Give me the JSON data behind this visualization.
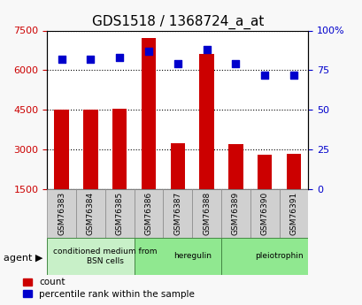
{
  "title": "GDS1518 / 1368724_a_at",
  "samples": [
    "GSM76383",
    "GSM76384",
    "GSM76385",
    "GSM76386",
    "GSM76387",
    "GSM76388",
    "GSM76389",
    "GSM76390",
    "GSM76391"
  ],
  "counts": [
    4500,
    4500,
    4550,
    7200,
    3250,
    6600,
    3200,
    2800,
    2850
  ],
  "percentiles": [
    82,
    82,
    83,
    87,
    79,
    88,
    79,
    72,
    72
  ],
  "groups": [
    {
      "label": "conditioned medium from\nBSN cells",
      "start": 0,
      "end": 3,
      "color": "#c8f0c8"
    },
    {
      "label": "heregulin",
      "start": 3,
      "end": 6,
      "color": "#90e890"
    },
    {
      "label": "pleiotrophin",
      "start": 6,
      "end": 9,
      "color": "#90e890"
    }
  ],
  "ylim_left": [
    1500,
    7500
  ],
  "ylim_right": [
    0,
    100
  ],
  "yticks_left": [
    1500,
    3000,
    4500,
    6000,
    7500
  ],
  "yticks_right": [
    0,
    25,
    50,
    75,
    100
  ],
  "ytick_labels_right": [
    "0",
    "25",
    "50",
    "75",
    "100%"
  ],
  "bar_color": "#cc0000",
  "dot_color": "#0000cc",
  "bar_width": 0.5,
  "background_color": "#f0f0f0",
  "plot_bg_color": "#ffffff",
  "grid_color": "#000000",
  "label_count": "count",
  "label_percentile": "percentile rank within the sample"
}
